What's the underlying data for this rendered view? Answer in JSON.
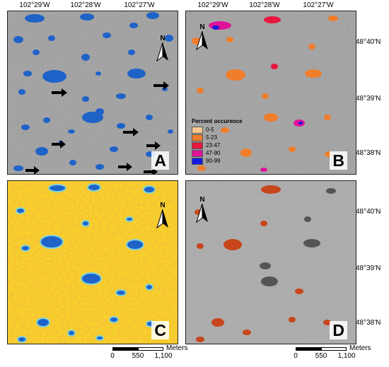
{
  "top_longitudes": [
    "102°29'W",
    "102°28'W",
    "102°27'W",
    "102°29'W",
    "102°28'W",
    "102°27'W"
  ],
  "right_latitudes": [
    "48°40'N",
    "48°39'N",
    "48°38'N",
    "48°40'N",
    "48°39'N",
    "48°38'N"
  ],
  "panels": {
    "a": {
      "label": "A"
    },
    "b": {
      "label": "B"
    },
    "c": {
      "label": "C"
    },
    "d": {
      "label": "D"
    }
  },
  "north_arrow": {
    "letter": "N"
  },
  "legend": {
    "title": "Percent occurence",
    "classes": [
      {
        "label": "0-5",
        "color": "#fbc68f"
      },
      {
        "label": "5-23",
        "color": "#f07d2b"
      },
      {
        "label": "23-47",
        "color": "#e8163f"
      },
      {
        "label": "47-90",
        "color": "#e0119a"
      },
      {
        "label": "90-99",
        "color": "#1418e0"
      }
    ]
  },
  "scale_bar": {
    "unit": "Meters",
    "ticks": [
      "0",
      "550",
      "1,100"
    ]
  },
  "colors": {
    "water_blue": "#1f63c9",
    "arrow": "#000000",
    "heat_orange": "#f59a1f",
    "heat_yellow": "#f6d32a",
    "wetland_brown": "#c8461c"
  }
}
